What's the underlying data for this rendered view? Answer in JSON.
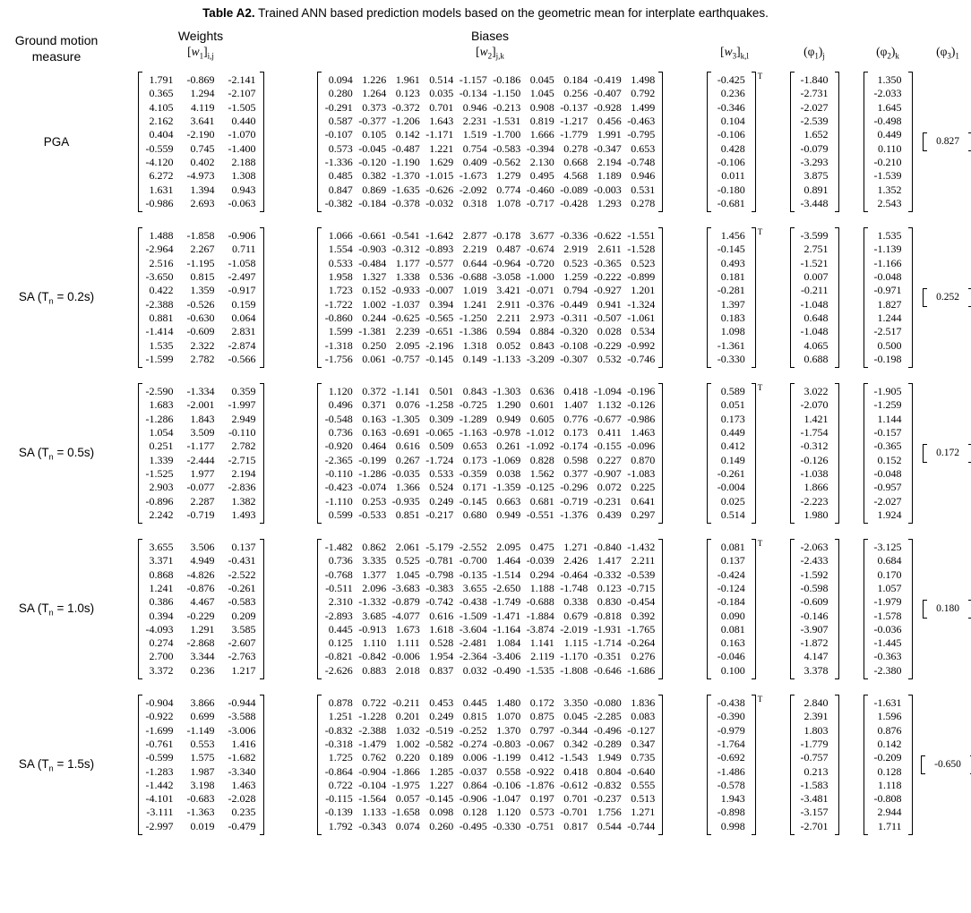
{
  "title": {
    "bold": "Table A2.",
    "rest": " Trained ANN based prediction models based on the geometric mean for interplate earthquakes."
  },
  "header": {
    "ground_motion_line1": "Ground motion",
    "ground_motion_line2": "measure",
    "weights": "Weights",
    "biases": "Biases",
    "symbols": [
      {
        "id": "w1",
        "open": "[",
        "variable": "w",
        "inner_sub": "1",
        "close": "]",
        "outer_sub": "i,j",
        "italic": true
      },
      {
        "id": "w2",
        "open": "[",
        "variable": "w",
        "inner_sub": "2",
        "close": "]",
        "outer_sub": "j,k",
        "italic": true
      },
      {
        "id": "w3",
        "open": "[",
        "variable": "w",
        "inner_sub": "3",
        "close": "]",
        "outer_sub": "k,l",
        "italic": true
      },
      {
        "id": "phi1",
        "open": "(",
        "variable": "φ",
        "inner_sub": "1",
        "close": ")",
        "outer_sub": "j",
        "italic": false
      },
      {
        "id": "phi2",
        "open": "(",
        "variable": "φ",
        "inner_sub": "2",
        "close": ")",
        "outer_sub": "k",
        "italic": false
      },
      {
        "id": "phi3",
        "open": "(",
        "variable": "φ",
        "inner_sub": "3",
        "close": ")",
        "outer_sub": "1",
        "italic": false
      }
    ]
  },
  "transpose_mark": "T",
  "rows": [
    {
      "label_parts": [
        "PGA"
      ],
      "w1": [
        [
          "1.791",
          "-0.869",
          "-2.141"
        ],
        [
          "0.365",
          "1.294",
          "-2.107"
        ],
        [
          "4.105",
          "4.119",
          "-1.505"
        ],
        [
          "2.162",
          "3.641",
          "0.440"
        ],
        [
          "0.404",
          "-2.190",
          "-1.070"
        ],
        [
          "-0.559",
          "0.745",
          "-1.400"
        ],
        [
          "-4.120",
          "0.402",
          "2.188"
        ],
        [
          "6.272",
          "-4.973",
          "1.308"
        ],
        [
          "1.631",
          "1.394",
          "0.943"
        ],
        [
          "-0.986",
          "2.693",
          "-0.063"
        ]
      ],
      "w2": [
        [
          "0.094",
          "1.226",
          "1.961",
          "0.514",
          "-1.157",
          "-0.186",
          "0.045",
          "0.184",
          "-0.419",
          "1.498"
        ],
        [
          "0.280",
          "1.264",
          "0.123",
          "0.035",
          "-0.134",
          "-1.150",
          "1.045",
          "0.256",
          "-0.407",
          "0.792"
        ],
        [
          "-0.291",
          "0.373",
          "-0.372",
          "0.701",
          "0.946",
          "-0.213",
          "0.908",
          "-0.137",
          "-0.928",
          "1.499"
        ],
        [
          "0.587",
          "-0.377",
          "-1.206",
          "1.643",
          "2.231",
          "-1.531",
          "0.819",
          "-1.217",
          "0.456",
          "-0.463"
        ],
        [
          "-0.107",
          "0.105",
          "0.142",
          "-1.171",
          "1.519",
          "-1.700",
          "1.666",
          "-1.779",
          "1.991",
          "-0.795"
        ],
        [
          "0.573",
          "-0.045",
          "-0.487",
          "1.221",
          "0.754",
          "-0.583",
          "-0.394",
          "0.278",
          "-0.347",
          "0.653"
        ],
        [
          "-1.336",
          "-0.120",
          "-1.190",
          "1.629",
          "0.409",
          "-0.562",
          "2.130",
          "0.668",
          "2.194",
          "-0.748"
        ],
        [
          "0.485",
          "0.382",
          "-1.370",
          "-1.015",
          "-1.673",
          "1.279",
          "0.495",
          "4.568",
          "1.189",
          "0.946"
        ],
        [
          "0.847",
          "0.869",
          "-1.635",
          "-0.626",
          "-2.092",
          "0.774",
          "-0.460",
          "-0.089",
          "-0.003",
          "0.531"
        ],
        [
          "-0.382",
          "-0.184",
          "-0.378",
          "-0.032",
          "0.318",
          "1.078",
          "-0.717",
          "-0.428",
          "1.293",
          "0.278"
        ]
      ],
      "w3": [
        "-0.425",
        "0.236",
        "-0.346",
        "0.104",
        "-0.106",
        "0.428",
        "-0.106",
        "0.011",
        "-0.180",
        "-0.681"
      ],
      "phi1": [
        "-1.840",
        "-2.731",
        "-2.027",
        "-2.539",
        "1.652",
        "-0.079",
        "-3.293",
        "3.875",
        "0.891",
        "-3.448"
      ],
      "phi2": [
        "1.350",
        "-2.033",
        "1.645",
        "-0.498",
        "0.449",
        "0.110",
        "-0.210",
        "-1.539",
        "1.352",
        "2.543"
      ],
      "phi3": "0.827"
    },
    {
      "label_parts": [
        "SA (T",
        {
          "sub": "n"
        },
        " = 0.2s)"
      ],
      "w1": [
        [
          "1.488",
          "-1.858",
          "-0.906"
        ],
        [
          "-2.964",
          "2.267",
          "0.711"
        ],
        [
          "2.516",
          "-1.195",
          "-1.058"
        ],
        [
          "-3.650",
          "0.815",
          "-2.497"
        ],
        [
          "0.422",
          "1.359",
          "-0.917"
        ],
        [
          "-2.388",
          "-0.526",
          "0.159"
        ],
        [
          "0.881",
          "-0.630",
          "0.064"
        ],
        [
          "-1.414",
          "-0.609",
          "2.831"
        ],
        [
          "1.535",
          "2.322",
          "-2.874"
        ],
        [
          "-1.599",
          "2.782",
          "-0.566"
        ]
      ],
      "w2": [
        [
          "1.066",
          "-0.661",
          "-0.541",
          "-1.642",
          "2.877",
          "-0.178",
          "3.677",
          "-0.336",
          "-0.622",
          "-1.551"
        ],
        [
          "1.554",
          "-0.903",
          "-0.312",
          "-0.893",
          "2.219",
          "0.487",
          "-0.674",
          "2.919",
          "2.611",
          "-1.528"
        ],
        [
          "0.533",
          "-0.484",
          "1.177",
          "-0.577",
          "0.644",
          "-0.964",
          "-0.720",
          "0.523",
          "-0.365",
          "0.523"
        ],
        [
          "1.958",
          "1.327",
          "1.338",
          "0.536",
          "-0.688",
          "-3.058",
          "-1.000",
          "1.259",
          "-0.222",
          "-0.899"
        ],
        [
          "1.723",
          "0.152",
          "-0.933",
          "-0.007",
          "1.019",
          "3.421",
          "-0.071",
          "0.794",
          "-0.927",
          "1.201"
        ],
        [
          "-1.722",
          "1.002",
          "-1.037",
          "0.394",
          "1.241",
          "2.911",
          "-0.376",
          "-0.449",
          "0.941",
          "-1.324"
        ],
        [
          "-0.860",
          "0.244",
          "-0.625",
          "-0.565",
          "-1.250",
          "2.211",
          "2.973",
          "-0.311",
          "-0.507",
          "-1.061"
        ],
        [
          "1.599",
          "-1.381",
          "2.239",
          "-0.651",
          "-1.386",
          "0.594",
          "0.884",
          "-0.320",
          "0.028",
          "0.534"
        ],
        [
          "-1.318",
          "0.250",
          "2.095",
          "-2.196",
          "1.318",
          "0.052",
          "0.843",
          "-0.108",
          "-0.229",
          "-0.992"
        ],
        [
          "-1.756",
          "0.061",
          "-0.757",
          "-0.145",
          "0.149",
          "-1.133",
          "-3.209",
          "-0.307",
          "0.532",
          "-0.746"
        ]
      ],
      "w3": [
        "1.456",
        "-0.145",
        "0.493",
        "0.181",
        "-0.281",
        "1.397",
        "0.183",
        "1.098",
        "-1.361",
        "-0.330"
      ],
      "phi1": [
        "-3.599",
        "2.751",
        "-1.521",
        "0.007",
        "-0.211",
        "-1.048",
        "0.648",
        "-1.048",
        "4.065",
        "0.688"
      ],
      "phi2": [
        "1.535",
        "-1.139",
        "-1.166",
        "-0.048",
        "-0.971",
        "1.827",
        "1.244",
        "-2.517",
        "0.500",
        "-0.198"
      ],
      "phi3": "0.252"
    },
    {
      "label_parts": [
        "SA (T",
        {
          "sub": "n"
        },
        " = 0.5s)"
      ],
      "w1": [
        [
          "-2.590",
          "-1.334",
          "0.359"
        ],
        [
          "1.683",
          "-2.001",
          "-1.997"
        ],
        [
          "-1.286",
          "1.843",
          "2.949"
        ],
        [
          "1.054",
          "3.509",
          "-0.110"
        ],
        [
          "0.251",
          "-1.177",
          "2.782"
        ],
        [
          "1.339",
          "-2.444",
          "-2.715"
        ],
        [
          "-1.525",
          "1.977",
          "2.194"
        ],
        [
          "2.903",
          "-0.077",
          "-2.836"
        ],
        [
          "-0.896",
          "2.287",
          "1.382"
        ],
        [
          "2.242",
          "-0.719",
          "1.493"
        ]
      ],
      "w2": [
        [
          "1.120",
          "0.372",
          "-1.141",
          "0.501",
          "0.843",
          "-1.303",
          "0.636",
          "0.418",
          "-1.094",
          "-0.196"
        ],
        [
          "0.496",
          "0.371",
          "0.076",
          "-1.258",
          "-0.725",
          "1.290",
          "0.601",
          "1.407",
          "1.132",
          "-0.126"
        ],
        [
          "-0.548",
          "0.163",
          "-1.305",
          "0.309",
          "-1.289",
          "0.949",
          "0.605",
          "0.776",
          "-0.677",
          "-0.986"
        ],
        [
          "0.736",
          "0.163",
          "-0.691",
          "-0.065",
          "-1.163",
          "-0.978",
          "-1.012",
          "0.173",
          "0.411",
          "1.463"
        ],
        [
          "-0.920",
          "0.464",
          "0.616",
          "0.509",
          "0.653",
          "0.261",
          "-1.092",
          "-0.174",
          "-0.155",
          "-0.096"
        ],
        [
          "-2.365",
          "-0.199",
          "0.267",
          "-1.724",
          "0.173",
          "-1.069",
          "0.828",
          "0.598",
          "0.227",
          "0.870"
        ],
        [
          "-0.110",
          "-1.286",
          "-0.035",
          "0.533",
          "-0.359",
          "0.038",
          "1.562",
          "0.377",
          "-0.907",
          "-1.083"
        ],
        [
          "-0.423",
          "-0.074",
          "1.366",
          "0.524",
          "0.171",
          "-1.359",
          "-0.125",
          "-0.296",
          "0.072",
          "0.225"
        ],
        [
          "-1.110",
          "0.253",
          "-0.935",
          "0.249",
          "-0.145",
          "0.663",
          "0.681",
          "-0.719",
          "-0.231",
          "0.641"
        ],
        [
          "0.599",
          "-0.533",
          "0.851",
          "-0.217",
          "0.680",
          "0.949",
          "-0.551",
          "-1.376",
          "0.439",
          "0.297"
        ]
      ],
      "w3": [
        "0.589",
        "0.051",
        "0.173",
        "0.449",
        "0.412",
        "0.149",
        "-0.261",
        "-0.004",
        "0.025",
        "0.514"
      ],
      "phi1": [
        "3.022",
        "-2.070",
        "1.421",
        "-1.754",
        "-0.312",
        "-0.126",
        "-1.038",
        "1.866",
        "-2.223",
        "1.980"
      ],
      "phi2": [
        "-1.905",
        "-1.259",
        "1.144",
        "-0.157",
        "-0.365",
        "0.152",
        "-0.048",
        "-0.957",
        "-2.027",
        "1.924"
      ],
      "phi3": "0.172"
    },
    {
      "label_parts": [
        "SA (T",
        {
          "sub": "n"
        },
        " = 1.0s)"
      ],
      "w1": [
        [
          "3.655",
          "3.506",
          "0.137"
        ],
        [
          "3.371",
          "4.949",
          "-0.431"
        ],
        [
          "0.868",
          "-4.826",
          "-2.522"
        ],
        [
          "1.241",
          "-0.876",
          "-0.261"
        ],
        [
          "0.386",
          "4.467",
          "-0.583"
        ],
        [
          "0.394",
          "-0.229",
          "0.209"
        ],
        [
          "-4.093",
          "1.291",
          "3.585"
        ],
        [
          "0.274",
          "-2.868",
          "-2.607"
        ],
        [
          "2.700",
          "3.344",
          "-2.763"
        ],
        [
          "3.372",
          "0.236",
          "1.217"
        ]
      ],
      "w2": [
        [
          "-1.482",
          "0.862",
          "2.061",
          "-5.179",
          "-2.552",
          "2.095",
          "0.475",
          "1.271",
          "-0.840",
          "-1.432"
        ],
        [
          "0.736",
          "3.335",
          "0.525",
          "-0.781",
          "-0.700",
          "1.464",
          "-0.039",
          "2.426",
          "1.417",
          "2.211"
        ],
        [
          "-0.768",
          "1.377",
          "1.045",
          "-0.798",
          "-0.135",
          "-1.514",
          "0.294",
          "-0.464",
          "-0.332",
          "-0.539"
        ],
        [
          "-0.511",
          "2.096",
          "-3.683",
          "-0.383",
          "3.655",
          "-2.650",
          "1.188",
          "-1.748",
          "0.123",
          "-0.715"
        ],
        [
          "2.310",
          "-1.332",
          "-0.879",
          "-0.742",
          "-0.438",
          "-1.749",
          "-0.688",
          "0.338",
          "0.830",
          "-0.454"
        ],
        [
          "-2.893",
          "3.685",
          "-4.077",
          "0.616",
          "-1.509",
          "-1.471",
          "-1.884",
          "0.679",
          "-0.818",
          "0.392"
        ],
        [
          "0.445",
          "-0.913",
          "1.673",
          "1.618",
          "-3.604",
          "-1.164",
          "-3.874",
          "-2.019",
          "-1.931",
          "-1.765"
        ],
        [
          "0.125",
          "1.110",
          "1.111",
          "0.528",
          "-2.481",
          "1.084",
          "1.141",
          "1.115",
          "-1.714",
          "-0.264"
        ],
        [
          "-0.821",
          "-0.842",
          "-0.006",
          "1.954",
          "-2.364",
          "-3.406",
          "2.119",
          "-1.170",
          "-0.351",
          "0.276"
        ],
        [
          "-2.626",
          "0.883",
          "2.018",
          "0.837",
          "0.032",
          "-0.490",
          "-1.535",
          "-1.808",
          "-0.646",
          "-1.686"
        ]
      ],
      "w3": [
        "0.081",
        "0.137",
        "-0.424",
        "-0.124",
        "-0.184",
        "0.090",
        "0.081",
        "0.163",
        "-0.046",
        "0.100"
      ],
      "phi1": [
        "-2.063",
        "-2.433",
        "-1.592",
        "-0.598",
        "-0.609",
        "-0.146",
        "-3.907",
        "-1.872",
        "4.147",
        "3.378"
      ],
      "phi2": [
        "-3.125",
        "0.684",
        "0.170",
        "1.057",
        "-1.979",
        "-1.578",
        "-0.036",
        "-1.445",
        "-0.363",
        "-2.380"
      ],
      "phi3": "0.180"
    },
    {
      "label_parts": [
        "SA (T",
        {
          "sub": "n"
        },
        " = 1.5s)"
      ],
      "w1": [
        [
          "-0.904",
          "3.866",
          "-0.944"
        ],
        [
          "-0.922",
          "0.699",
          "-3.588"
        ],
        [
          "-1.699",
          "-1.149",
          "-3.006"
        ],
        [
          "-0.761",
          "0.553",
          "1.416"
        ],
        [
          "-0.599",
          "1.575",
          "-1.682"
        ],
        [
          "-1.283",
          "1.987",
          "-3.340"
        ],
        [
          "-1.442",
          "3.198",
          "1.463"
        ],
        [
          "-4.101",
          "-0.683",
          "-2.028"
        ],
        [
          "-3.111",
          "-1.363",
          "0.235"
        ],
        [
          "-2.997",
          "0.019",
          "-0.479"
        ]
      ],
      "w2": [
        [
          "0.878",
          "0.722",
          "-0.211",
          "0.453",
          "0.445",
          "1.480",
          "0.172",
          "3.350",
          "-0.080",
          "1.836"
        ],
        [
          "1.251",
          "-1.228",
          "0.201",
          "0.249",
          "0.815",
          "1.070",
          "0.875",
          "0.045",
          "-2.285",
          "0.083"
        ],
        [
          "-0.832",
          "-2.388",
          "1.032",
          "-0.519",
          "-0.252",
          "1.370",
          "0.797",
          "-0.344",
          "-0.496",
          "-0.127"
        ],
        [
          "-0.318",
          "-1.479",
          "1.002",
          "-0.582",
          "-0.274",
          "-0.803",
          "-0.067",
          "0.342",
          "-0.289",
          "0.347"
        ],
        [
          "1.725",
          "0.762",
          "0.220",
          "0.189",
          "0.006",
          "-1.199",
          "0.412",
          "-1.543",
          "1.949",
          "0.735"
        ],
        [
          "-0.864",
          "-0.904",
          "-1.866",
          "1.285",
          "-0.037",
          "0.558",
          "-0.922",
          "0.418",
          "0.804",
          "-0.640"
        ],
        [
          "0.722",
          "-0.104",
          "-1.975",
          "1.227",
          "0.864",
          "-0.106",
          "-1.876",
          "-0.612",
          "-0.832",
          "0.555"
        ],
        [
          "-0.115",
          "-1.564",
          "0.057",
          "-0.145",
          "-0.906",
          "-1.047",
          "0.197",
          "0.701",
          "-0.237",
          "0.513"
        ],
        [
          "-0.139",
          "1.133",
          "-1.658",
          "0.098",
          "0.128",
          "1.120",
          "0.573",
          "-0.701",
          "1.756",
          "1.271"
        ],
        [
          "1.792",
          "-0.343",
          "0.074",
          "0.260",
          "-0.495",
          "-0.330",
          "-0.751",
          "0.817",
          "0.544",
          "-0.744"
        ]
      ],
      "w3": [
        "-0.438",
        "-0.390",
        "-0.979",
        "-1.764",
        "-0.692",
        "-1.486",
        "-0.578",
        "1.943",
        "-0.898",
        "0.998"
      ],
      "phi1": [
        "2.840",
        "2.391",
        "1.803",
        "-1.779",
        "-0.757",
        "0.213",
        "-1.583",
        "-3.481",
        "-3.157",
        "-2.701"
      ],
      "phi2": [
        "-1.631",
        "1.596",
        "0.876",
        "0.142",
        "-0.209",
        "0.128",
        "1.118",
        "-0.808",
        "2.944",
        "1.711"
      ],
      "phi3": "-0.650"
    }
  ]
}
